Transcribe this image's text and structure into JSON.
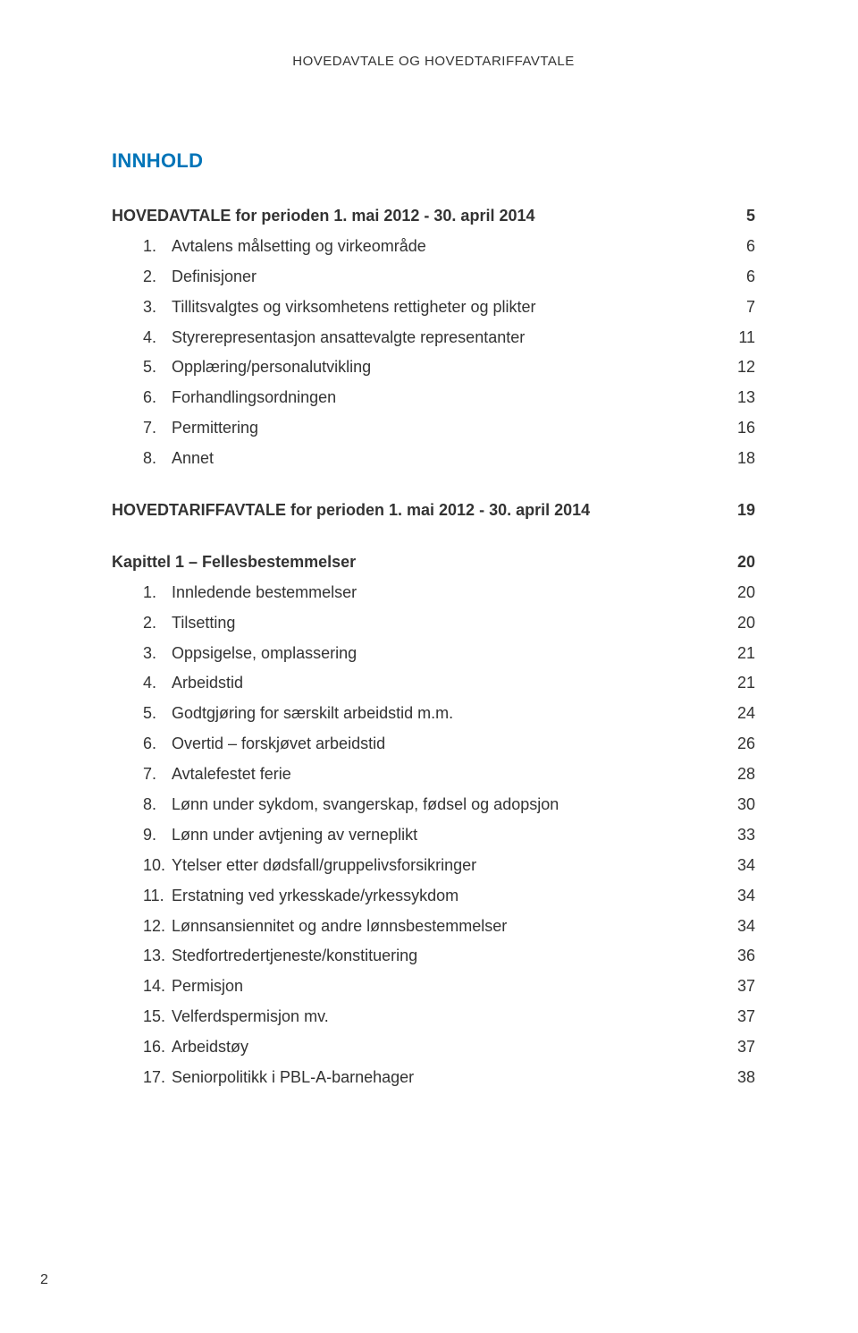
{
  "header": "HOVEDAVTALE OG HOVEDTARIFFAVTALE",
  "title": "INNHOLD",
  "colors": {
    "accent": "#0074b8",
    "text": "#333333",
    "background": "#ffffff"
  },
  "sections": [
    {
      "heading": {
        "label": "HOVEDAVTALE for perioden 1. mai 2012 - 30. april 2014",
        "page": "5"
      },
      "items": [
        {
          "num": "1.",
          "label": "Avtalens målsetting og virkeområde",
          "page": "6"
        },
        {
          "num": "2.",
          "label": "Definisjoner",
          "page": "6"
        },
        {
          "num": "3.",
          "label": "Tillitsvalgtes og virksomhetens rettigheter og plikter",
          "page": "7"
        },
        {
          "num": "4.",
          "label": "Styrerepresentasjon ansattevalgte representanter",
          "page": "11"
        },
        {
          "num": "5.",
          "label": "Opplæring/personalutvikling",
          "page": "12"
        },
        {
          "num": "6.",
          "label": "Forhandlingsordningen",
          "page": "13"
        },
        {
          "num": "7.",
          "label": "Permittering",
          "page": "16"
        },
        {
          "num": "8.",
          "label": "Annet",
          "page": "18"
        }
      ]
    },
    {
      "heading": {
        "label": "HOVEDTARIFFAVTALE for perioden 1. mai 2012 - 30. april 2014",
        "page": "19"
      }
    },
    {
      "heading": {
        "label": "Kapittel 1 – Fellesbestemmelser",
        "page": "20"
      },
      "items": [
        {
          "num": "1.",
          "label": "Innledende bestemmelser",
          "page": "20"
        },
        {
          "num": "2.",
          "label": "Tilsetting",
          "page": "20"
        },
        {
          "num": "3.",
          "label": "Oppsigelse, omplassering",
          "page": "21"
        },
        {
          "num": "4.",
          "label": "Arbeidstid",
          "page": "21"
        },
        {
          "num": "5.",
          "label": "Godtgjøring for særskilt arbeidstid m.m.",
          "page": "24"
        },
        {
          "num": "6.",
          "label": "Overtid – forskjøvet arbeidstid",
          "page": "26"
        },
        {
          "num": "7.",
          "label": "Avtalefestet ferie",
          "page": "28"
        },
        {
          "num": "8.",
          "label": "Lønn under sykdom, svangerskap, fødsel og adopsjon",
          "page": "30"
        },
        {
          "num": "9.",
          "label": "Lønn under avtjening av verneplikt",
          "page": "33"
        },
        {
          "num": "10.",
          "label": "Ytelser etter dødsfall/gruppelivsforsikringer",
          "page": "34"
        },
        {
          "num": "11.",
          "label": "Erstatning ved yrkesskade/yrkessykdom",
          "page": "34"
        },
        {
          "num": "12.",
          "label": "Lønnsansiennitet og andre lønnsbestemmelser",
          "page": "34"
        },
        {
          "num": "13.",
          "label": "Stedfortredertjeneste/konstituering",
          "page": "36"
        },
        {
          "num": "14.",
          "label": "Permisjon",
          "page": "37"
        },
        {
          "num": "15.",
          "label": "Velferdspermisjon mv.",
          "page": "37"
        },
        {
          "num": "16.",
          "label": "Arbeidstøy",
          "page": "37"
        },
        {
          "num": "17.",
          "label": "Seniorpolitikk i PBL-A-barnehager",
          "page": "38"
        }
      ]
    }
  ],
  "pageNumber": "2"
}
